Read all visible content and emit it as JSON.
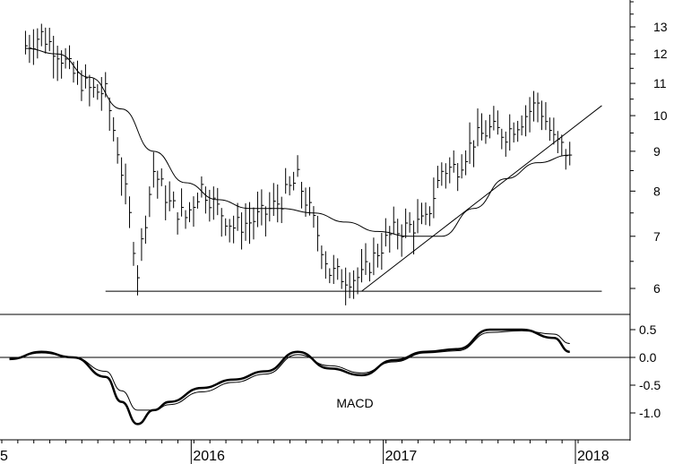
{
  "chart_data": [
    {
      "type": "line",
      "panel": "price",
      "title": "",
      "xlabel": "",
      "ylabel": "",
      "yscale": "log",
      "ylim": [
        5.6,
        14.2
      ],
      "y_ticks": [
        "13",
        "12",
        "11",
        "10",
        "9",
        "8",
        "7",
        "6"
      ],
      "x_tick_labels": [
        "5",
        "2016",
        "2017",
        "2018"
      ],
      "series": [
        {
          "style": "weekly-price-bars",
          "x": [
            "2015-02",
            "2015-03",
            "2015-04",
            "2015-05",
            "2015-06",
            "2015-07",
            "2015-08",
            "2015-09",
            "2015-10",
            "2015-11",
            "2015-12",
            "2016-01",
            "2016-02",
            "2016-03",
            "2016-04",
            "2016-05",
            "2016-06",
            "2016-07",
            "2016-08",
            "2016-09",
            "2016-10",
            "2016-11",
            "2016-12",
            "2017-01",
            "2017-02",
            "2017-03",
            "2017-04",
            "2017-05",
            "2017-06",
            "2017-07",
            "2017-08",
            "2017-09",
            "2017-10",
            "2017-11",
            "2017-12"
          ],
          "values": [
            12.3,
            12.7,
            12.1,
            11.3,
            10.8,
            10.7,
            8.5,
            6.3,
            8.5,
            7.7,
            7.4,
            8.1,
            7.6,
            7.2,
            7.3,
            7.5,
            7.8,
            8.3,
            7.3,
            6.3,
            6.2,
            6.2,
            6.7,
            7.1,
            7.2,
            7.3,
            8.5,
            8.6,
            9.3,
            9.6,
            9.5,
            9.9,
            10.4,
            9.3,
            8.9
          ]
        },
        {
          "style": "moving-average",
          "x": [
            "2015-02",
            "2015-04",
            "2015-06",
            "2015-08",
            "2015-10",
            "2015-12",
            "2016-02",
            "2016-04",
            "2016-06",
            "2016-08",
            "2016-10",
            "2016-12",
            "2017-02",
            "2017-04",
            "2017-06",
            "2017-08",
            "2017-10",
            "2017-12"
          ],
          "values": [
            12.2,
            12.0,
            11.2,
            10.2,
            9.0,
            8.2,
            7.8,
            7.6,
            7.6,
            7.5,
            7.3,
            7.1,
            7.0,
            7.0,
            7.6,
            8.3,
            8.7,
            8.9
          ]
        }
      ],
      "trendlines": [
        {
          "x": [
            "2015-07",
            "2018-02"
          ],
          "values": [
            5.95,
            5.95
          ]
        },
        {
          "x": [
            "2016-11",
            "2018-02"
          ],
          "values": [
            5.95,
            10.3
          ]
        }
      ]
    },
    {
      "type": "line",
      "panel": "indicator",
      "title": "MACD",
      "ylim": [
        -1.25,
        0.72
      ],
      "y_ticks": [
        "0.5",
        "0.0",
        "-0.5",
        "-1.0"
      ],
      "reference_line": 0.0,
      "series": [
        {
          "style": "macd",
          "x": [
            "2015-01",
            "2015-03",
            "2015-05",
            "2015-07",
            "2015-08",
            "2015-09",
            "2015-10",
            "2015-11",
            "2016-01",
            "2016-03",
            "2016-05",
            "2016-07",
            "2016-09",
            "2016-11",
            "2017-01",
            "2017-03",
            "2017-05",
            "2017-07",
            "2017-09",
            "2017-11",
            "2017-12"
          ],
          "values": [
            -0.03,
            0.1,
            0.0,
            -0.35,
            -0.8,
            -1.2,
            -0.95,
            -0.8,
            -0.55,
            -0.4,
            -0.25,
            0.1,
            -0.2,
            -0.32,
            -0.05,
            0.1,
            0.15,
            0.5,
            0.5,
            0.35,
            0.1
          ]
        },
        {
          "style": "signal",
          "x": [
            "2015-01",
            "2015-03",
            "2015-05",
            "2015-07",
            "2015-08",
            "2015-09",
            "2015-10",
            "2015-11",
            "2016-01",
            "2016-03",
            "2016-05",
            "2016-07",
            "2016-09",
            "2016-11",
            "2017-01",
            "2017-03",
            "2017-05",
            "2017-07",
            "2017-09",
            "2017-11",
            "2017-12"
          ],
          "values": [
            -0.02,
            0.08,
            0.0,
            -0.25,
            -0.6,
            -0.95,
            -0.95,
            -0.85,
            -0.62,
            -0.45,
            -0.3,
            0.05,
            -0.15,
            -0.28,
            -0.08,
            0.08,
            0.12,
            0.45,
            0.48,
            0.42,
            0.25
          ]
        }
      ]
    }
  ],
  "colors": {
    "line": "#000000",
    "background": "#ffffff"
  }
}
